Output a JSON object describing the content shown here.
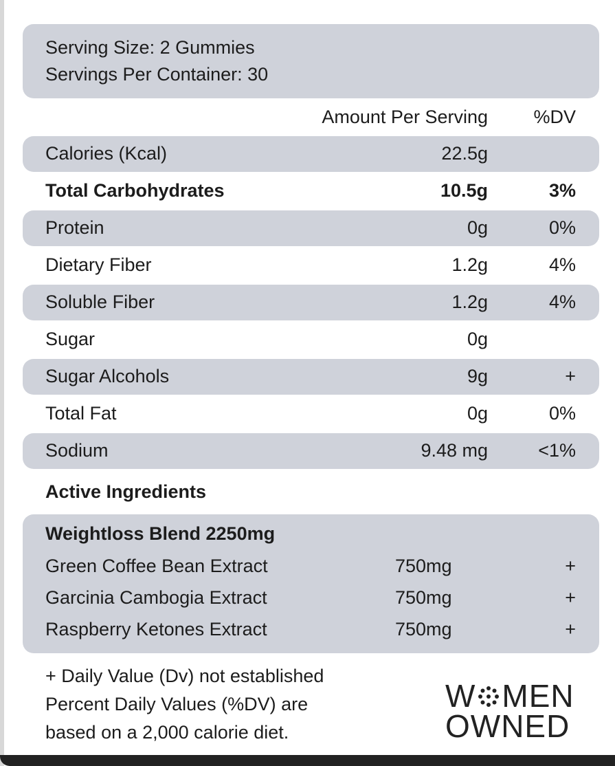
{
  "serving": {
    "size": "Serving Size: 2 Gummies",
    "per_container": "Servings Per Container: 30"
  },
  "columns": {
    "amount": "Amount Per Serving",
    "dv": "%DV"
  },
  "nutrients": [
    {
      "name": "Calories (Kcal)",
      "amount": "22.5g"
    },
    {
      "name": "Total Carbohydrates",
      "amount": "10.5g",
      "dv": "3%"
    },
    {
      "name": "Protein",
      "amount": "0g",
      "dv": "0%"
    },
    {
      "name": "Dietary Fiber",
      "amount": "1.2g",
      "dv": "4%"
    },
    {
      "name": "Soluble Fiber",
      "amount": "1.2g",
      "dv": "4%"
    },
    {
      "name": "Sugar",
      "amount": "0g"
    },
    {
      "name": "Sugar Alcohols",
      "amount": "9g",
      "dv": "+"
    },
    {
      "name": "Total Fat",
      "amount": "0g",
      "dv": "0%"
    },
    {
      "name": "Sodium",
      "amount": "9.48 mg",
      "dv": "<1%"
    }
  ],
  "active": {
    "title": "Active Ingredients",
    "blend": "Weightloss Blend 2250mg",
    "items": [
      {
        "name": "Green Coffee Bean Extract",
        "amount": "750mg",
        "dv": "+"
      },
      {
        "name": "Garcinia Cambogia Extract",
        "amount": "750mg",
        "dv": "+"
      },
      {
        "name": "Raspberry Ketones Extract",
        "amount": "750mg",
        "dv": "+"
      }
    ]
  },
  "footnote": [
    "+ Daily Value (Dv) not established",
    "Percent Daily Values (%DV) are",
    "based on a 2,000 calorie diet."
  ],
  "logo": {
    "w": "W",
    "men": "MEN",
    "owned": "OWNED"
  }
}
